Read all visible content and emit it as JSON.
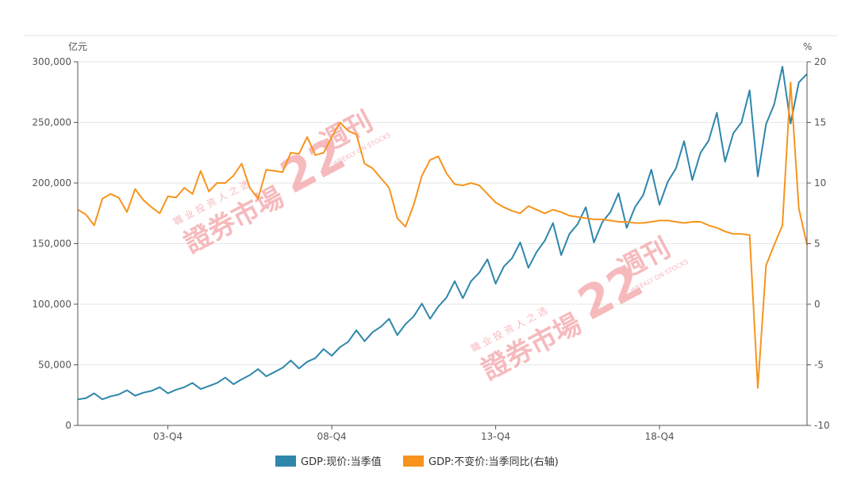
{
  "chart_data": {
    "type": "line",
    "y_left_unit": "亿元",
    "y_right_unit": "%",
    "y_left_range": [
      0,
      300000
    ],
    "y_right_range": [
      -10,
      20
    ],
    "y_left_ticks": [
      "0",
      "50,000",
      "100,000",
      "150,000",
      "200,000",
      "250,000",
      "300,000"
    ],
    "y_right_ticks": [
      "-10",
      "-5",
      "0",
      "5",
      "10",
      "15",
      "20"
    ],
    "x_tick_labels": [
      "03-Q4",
      "08-Q4",
      "13-Q4",
      "18-Q4"
    ],
    "x_tick_index": [
      11,
      31,
      51,
      71
    ],
    "grid": true,
    "legend_position": "bottom-center",
    "series": [
      {
        "name": "GDP:现价:当季值",
        "axis": "left",
        "color": "#2E86AB",
        "values": [
          21500,
          22500,
          26500,
          21500,
          24000,
          25500,
          29000,
          24500,
          27000,
          28500,
          31500,
          26500,
          29500,
          31500,
          35000,
          30000,
          32500,
          35000,
          39500,
          34000,
          38000,
          41500,
          46500,
          40500,
          44000,
          47500,
          53500,
          47000,
          52500,
          55500,
          63000,
          57500,
          64500,
          69000,
          78500,
          69500,
          77000,
          81500,
          88000,
          74500,
          83500,
          90000,
          100500,
          88000,
          98000,
          105500,
          119000,
          105000,
          119000,
          126000,
          137000,
          117000,
          131000,
          138000,
          151000,
          130000,
          143000,
          152500,
          167000,
          140500,
          158000,
          166000,
          180000,
          151000,
          167500,
          176000,
          191500,
          163000,
          180000,
          190000,
          211000,
          182000,
          201000,
          212000,
          234500,
          202500,
          225000,
          235000,
          258000,
          217500,
          241000,
          250000,
          276500,
          205500,
          248500,
          265000,
          296000,
          249000,
          283000,
          290000
        ]
      },
      {
        "name": "GDP:不变价:当季同比(右轴)",
        "axis": "right",
        "color": "#F7941D",
        "values": [
          7.8,
          7.4,
          6.5,
          8.7,
          9.1,
          8.8,
          7.6,
          9.5,
          8.6,
          8.0,
          7.5,
          8.9,
          8.8,
          9.6,
          9.1,
          11.0,
          9.3,
          10.0,
          10.0,
          10.6,
          11.6,
          9.6,
          8.7,
          11.1,
          11.0,
          10.9,
          12.5,
          12.4,
          13.8,
          12.3,
          12.5,
          13.8,
          15.0,
          14.3,
          14.0,
          11.6,
          11.2,
          10.4,
          9.6,
          7.1,
          6.4,
          8.2,
          10.6,
          11.9,
          12.2,
          10.8,
          9.9,
          9.8,
          10.0,
          9.8,
          9.1,
          8.4,
          8.0,
          7.7,
          7.5,
          8.1,
          7.8,
          7.5,
          7.8,
          7.6,
          7.3,
          7.2,
          7.1,
          7.0,
          7.0,
          6.9,
          6.8,
          6.8,
          6.7,
          6.7,
          6.8,
          6.9,
          6.9,
          6.8,
          6.7,
          6.8,
          6.8,
          6.5,
          6.3,
          6.0,
          5.8,
          5.8,
          5.7,
          -6.9,
          3.2,
          4.9,
          6.5,
          18.3,
          7.9,
          4.9
        ]
      }
    ]
  },
  "colors": {
    "grid": "#E6E6E6",
    "axis": "#555555",
    "left_series": "#2E86AB",
    "right_series": "#F7941D",
    "watermark": "#F4A3A8"
  },
  "watermarks": [
    {
      "sub": "職 业 投 资 人 之 选",
      "main": "證券市場",
      "brand": "週刊",
      "en": "WEEKLY ON STOCKS"
    },
    {
      "sub": "職 业 投 资 人 之 选",
      "main": "證券市場",
      "brand": "週刊",
      "en": "WEEKLY ON STOCKS"
    }
  ]
}
